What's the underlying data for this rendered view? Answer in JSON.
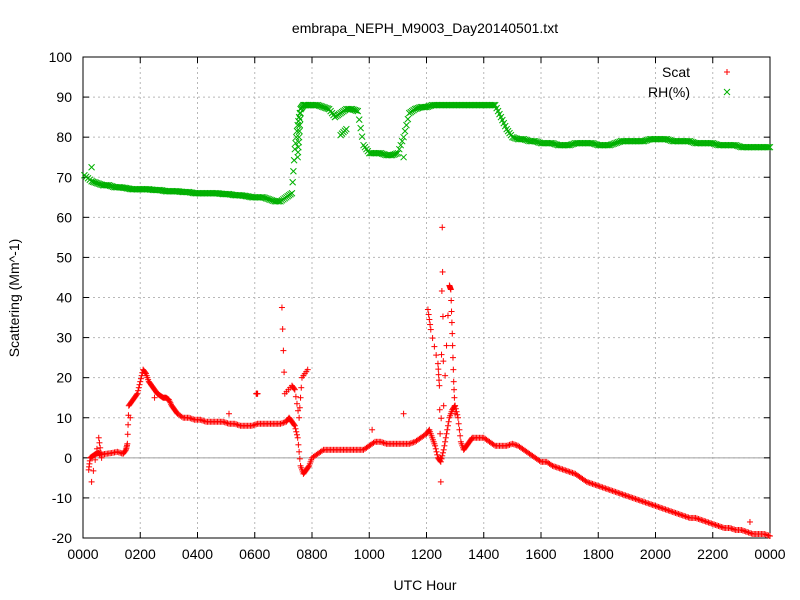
{
  "chart_data": {
    "type": "scatter",
    "title": "embrapa_NEPH_M9003_Day20140501.txt",
    "xlabel": "UTC Hour",
    "ylabel": "Scattering (Mm^-1)",
    "xlim": [
      0,
      24
    ],
    "ylim": [
      -20,
      100
    ],
    "x_ticks": [
      {
        "v": 0,
        "label": "0000"
      },
      {
        "v": 2,
        "label": "0200"
      },
      {
        "v": 4,
        "label": "0400"
      },
      {
        "v": 6,
        "label": "0600"
      },
      {
        "v": 8,
        "label": "0800"
      },
      {
        "v": 10,
        "label": "1000"
      },
      {
        "v": 12,
        "label": "1200"
      },
      {
        "v": 14,
        "label": "1400"
      },
      {
        "v": 16,
        "label": "1600"
      },
      {
        "v": 18,
        "label": "1800"
      },
      {
        "v": 20,
        "label": "2000"
      },
      {
        "v": 22,
        "label": "2200"
      },
      {
        "v": 24,
        "label": "0000"
      }
    ],
    "y_ticks": [
      {
        "v": -20,
        "label": "-20"
      },
      {
        "v": -10,
        "label": "-10"
      },
      {
        "v": 0,
        "label": "0"
      },
      {
        "v": 10,
        "label": "10"
      },
      {
        "v": 20,
        "label": "20"
      },
      {
        "v": 30,
        "label": "30"
      },
      {
        "v": 40,
        "label": "40"
      },
      {
        "v": 50,
        "label": "50"
      },
      {
        "v": 60,
        "label": "60"
      },
      {
        "v": 70,
        "label": "70"
      },
      {
        "v": 80,
        "label": "80"
      },
      {
        "v": 90,
        "label": "90"
      },
      {
        "v": 100,
        "label": "100"
      }
    ],
    "grid": true,
    "legend_position": "top-right",
    "zero_line": true,
    "series": [
      {
        "name": "Scat",
        "marker": "plus",
        "color": "#ff0000",
        "x": [
          0.2,
          0.25,
          0.35,
          0.45,
          0.55,
          0.6,
          0.8,
          1.0,
          1.2,
          1.4,
          1.5,
          1.55,
          1.6,
          1.7,
          1.8,
          1.9,
          2.0,
          2.1,
          2.2,
          2.3,
          2.4,
          2.5,
          2.6,
          2.7,
          2.8,
          2.9,
          3.0,
          3.1,
          3.2,
          3.3,
          3.5,
          3.7,
          3.9,
          4.1,
          4.3,
          4.5,
          4.7,
          4.9,
          5.1,
          5.3,
          5.5,
          5.7,
          5.9,
          6.1,
          6.3,
          6.5,
          6.7,
          6.9,
          7.1,
          7.2,
          7.3,
          7.4,
          7.5,
          7.6,
          7.7,
          7.8,
          7.9,
          8.0,
          8.2,
          8.4,
          8.6,
          8.8,
          9.0,
          9.2,
          9.4,
          9.6,
          9.8,
          10.0,
          10.2,
          10.4,
          10.6,
          10.8,
          11.0,
          11.2,
          11.4,
          11.6,
          11.8,
          12.0,
          12.1,
          12.2,
          12.3,
          12.4,
          12.5,
          12.6,
          12.7,
          12.8,
          12.9,
          13.0,
          13.1,
          13.2,
          13.3,
          13.4,
          13.5,
          13.6,
          13.8,
          14.0,
          14.2,
          14.4,
          14.6,
          14.8,
          15.0,
          15.2,
          15.4,
          15.6,
          15.8,
          16.0,
          16.2,
          16.4,
          16.6,
          16.8,
          17.0,
          17.2,
          17.4,
          17.6,
          17.8,
          18.0,
          18.2,
          18.4,
          18.6,
          18.8,
          19.0,
          19.2,
          19.4,
          19.6,
          19.8,
          20.0,
          20.2,
          20.4,
          20.6,
          20.8,
          21.0,
          21.2,
          21.4,
          21.6,
          21.8,
          22.0,
          22.2,
          22.4,
          22.6,
          22.8,
          23.0,
          23.2,
          23.4,
          23.6,
          23.8,
          24.0,
          0.3,
          0.55,
          0.65,
          1.65,
          2.5,
          5.1,
          6.05,
          6.1,
          6.95,
          7.05,
          7.3,
          7.4,
          7.55,
          7.65,
          7.85,
          10.1,
          11.2,
          12.05,
          12.15,
          12.4,
          12.45,
          12.5,
          12.55,
          12.6,
          12.8,
          12.85,
          12.9,
          12.95,
          13.0,
          23.3
        ],
        "y": [
          -3,
          0,
          0.5,
          1,
          1.2,
          0.8,
          1,
          1.2,
          1.5,
          1,
          2,
          3.5,
          13,
          14,
          15,
          16,
          19,
          22,
          21,
          19,
          18,
          17,
          16,
          15.5,
          15,
          15,
          14.5,
          13,
          12,
          11,
          10,
          10,
          9.5,
          9.5,
          9,
          9,
          9,
          9,
          8.5,
          8.5,
          8,
          8,
          8,
          8.5,
          8.5,
          8.5,
          8.5,
          8.5,
          9,
          10,
          9,
          8,
          5,
          -2,
          -4,
          -3,
          -2,
          0,
          1,
          2,
          2,
          2,
          2,
          2,
          2,
          2,
          2,
          3,
          4,
          4,
          3.5,
          3.5,
          3.5,
          3.5,
          3.5,
          4,
          5,
          6,
          7,
          5,
          3,
          0,
          -1,
          2,
          6,
          10,
          12,
          13,
          10,
          4,
          2,
          3,
          4,
          5,
          5,
          5,
          4,
          3,
          3,
          3,
          3.5,
          3,
          2,
          1,
          0,
          -1,
          -1,
          -2,
          -2.5,
          -3,
          -3.5,
          -4,
          -5,
          -6,
          -6.5,
          -7,
          -7.5,
          -8,
          -8.5,
          -9,
          -9.5,
          -10,
          -10.5,
          -11,
          -11.5,
          -12,
          -12.5,
          -13,
          -13.5,
          -14,
          -14.5,
          -15,
          -15,
          -15.5,
          -16,
          -16.5,
          -17,
          -17.5,
          -17.5,
          -18,
          -18,
          -18.5,
          -19,
          -19,
          -19,
          -19.5,
          -6,
          5,
          0,
          10,
          15,
          11,
          16,
          16,
          37.5,
          16,
          18,
          17,
          10,
          20,
          22,
          7,
          11,
          37,
          32,
          23.5,
          18,
          -6,
          57.5,
          13,
          43,
          42,
          31,
          19,
          11,
          -16
        ],
        "label_points": []
      },
      {
        "name": "RH(%)",
        "marker": "x",
        "color": "#00b000",
        "x": [
          0.05,
          0.3,
          0.5,
          0.7,
          0.9,
          1.1,
          1.3,
          1.5,
          1.7,
          1.9,
          2.1,
          2.3,
          2.5,
          2.7,
          2.9,
          3.1,
          3.3,
          3.5,
          3.7,
          3.9,
          4.1,
          4.3,
          4.5,
          4.7,
          4.9,
          5.1,
          5.3,
          5.5,
          5.7,
          5.9,
          6.1,
          6.3,
          6.5,
          6.7,
          6.9,
          7.1,
          7.3,
          7.4,
          7.5,
          7.6,
          7.7,
          7.8,
          8.0,
          8.2,
          8.4,
          8.6,
          8.8,
          9.0,
          9.2,
          9.4,
          9.6,
          9.8,
          10.0,
          10.2,
          10.4,
          10.6,
          10.8,
          11.0,
          11.2,
          11.4,
          11.6,
          11.8,
          12.0,
          12.2,
          12.4,
          12.6,
          12.8,
          13.0,
          13.2,
          13.4,
          13.6,
          13.8,
          14.0,
          14.2,
          14.4,
          14.6,
          14.8,
          15.0,
          15.2,
          15.4,
          15.6,
          15.8,
          16.0,
          16.2,
          16.4,
          16.6,
          16.8,
          17.0,
          17.2,
          17.4,
          17.6,
          17.8,
          18.0,
          18.2,
          18.4,
          18.6,
          18.8,
          19.0,
          19.2,
          19.4,
          19.6,
          19.8,
          20.0,
          20.2,
          20.4,
          20.6,
          20.8,
          21.0,
          21.2,
          21.4,
          21.6,
          21.8,
          22.0,
          22.2,
          22.4,
          22.6,
          22.8,
          23.0,
          23.2,
          23.4,
          23.6,
          23.8,
          24.0,
          0.3,
          7.5,
          7.55,
          7.6,
          9.0,
          9.2,
          11.2
        ],
        "y": [
          70.5,
          69,
          68.5,
          68,
          68,
          67.5,
          67.5,
          67.3,
          67,
          67,
          67,
          67,
          66.8,
          66.8,
          66.5,
          66.5,
          66.5,
          66.3,
          66.3,
          66,
          66,
          66,
          66,
          66,
          65.8,
          65.8,
          65.5,
          65.5,
          65.3,
          65,
          65,
          65,
          64.5,
          64,
          64,
          65,
          66,
          77,
          83,
          87,
          88,
          88,
          88,
          88,
          87.5,
          87,
          85,
          86,
          87,
          87,
          86.5,
          78,
          76,
          76,
          76,
          75.5,
          75.5,
          76,
          80,
          86,
          87,
          87.5,
          87.5,
          88,
          88,
          88,
          88,
          88,
          88,
          88,
          88,
          88,
          88,
          88,
          88,
          85,
          82,
          80,
          79.5,
          79.5,
          79,
          79,
          78.5,
          78.5,
          78.5,
          78,
          78,
          78,
          78.5,
          78.5,
          78.5,
          78.5,
          78,
          78,
          78,
          78.5,
          79,
          79,
          79,
          79,
          79,
          79.5,
          79.5,
          79.5,
          79.5,
          79,
          79,
          79,
          79,
          78.5,
          78.5,
          78.5,
          78.5,
          78,
          78,
          78,
          78,
          77.5,
          77.5,
          77.5,
          77.5,
          77.5,
          77.5,
          72.5,
          75,
          80,
          86,
          80.5,
          82,
          75
        ]
      }
    ]
  }
}
